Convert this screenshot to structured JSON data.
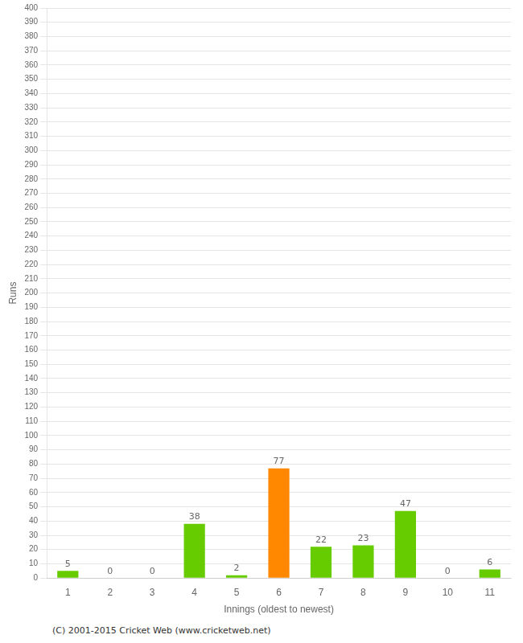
{
  "chart_data": {
    "type": "bar",
    "x_label": "Innings (oldest to newest)",
    "y_label": "Runs",
    "annotations": [
      "(C) 2001-2015 Cricket Web (www.cricketweb.net)"
    ],
    "categories": [
      "1",
      "2",
      "3",
      "4",
      "5",
      "6",
      "7",
      "8",
      "9",
      "10",
      "11"
    ],
    "values": [
      5,
      0,
      0,
      38,
      2,
      77,
      22,
      23,
      47,
      0,
      6
    ],
    "colors": [
      "#66cc00",
      "#66cc00",
      "#66cc00",
      "#66cc00",
      "#66cc00",
      "#ff8800",
      "#66cc00",
      "#66cc00",
      "#66cc00",
      "#66cc00",
      "#66cc00"
    ],
    "ylim": [
      0,
      400
    ],
    "yticks": [
      0,
      10,
      20,
      30,
      40,
      50,
      60,
      70,
      80,
      90,
      100,
      110,
      120,
      130,
      140,
      150,
      160,
      170,
      180,
      190,
      200,
      210,
      220,
      230,
      240,
      250,
      260,
      270,
      280,
      290,
      300,
      310,
      320,
      330,
      340,
      350,
      360,
      370,
      380,
      390,
      400
    ],
    "grid": true,
    "data_labels": true
  }
}
